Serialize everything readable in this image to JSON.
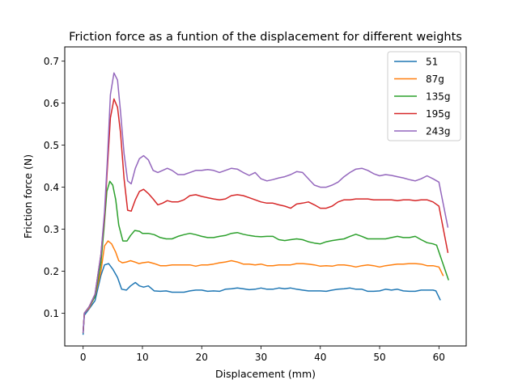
{
  "chart_data": {
    "type": "line",
    "title": "Friction force as a funtion of the displacement for different weights",
    "xlabel": "Displacement (mm)",
    "ylabel": "Friction force (N)",
    "xlim": [
      -3.1,
      64.6
    ],
    "ylim": [
      0.022,
      0.734
    ],
    "xticks": [
      0,
      10,
      20,
      30,
      40,
      50,
      60
    ],
    "yticks": [
      0.1,
      0.2,
      0.3,
      0.4,
      0.5,
      0.6,
      0.7
    ],
    "xtick_labels": [
      "0",
      "10",
      "20",
      "30",
      "40",
      "50",
      "60"
    ],
    "ytick_labels": [
      "0.1",
      "0.2",
      "0.3",
      "0.4",
      "0.5",
      "0.6",
      "0.7"
    ],
    "grid": false,
    "legend_position": "top-right",
    "series": [
      {
        "name": "51",
        "color": "#1f77b4",
        "x": [
          0,
          0.2,
          1,
          2,
          3,
          3.6,
          4.3,
          5,
          5.8,
          6.5,
          7.3,
          8,
          8.8,
          9.5,
          10.2,
          11,
          12,
          13,
          14,
          15,
          16,
          17,
          18,
          19,
          20,
          21,
          22,
          23,
          24,
          25,
          26,
          27,
          28,
          29,
          30,
          31,
          32,
          33,
          34,
          35,
          36,
          37,
          38,
          39,
          40,
          41,
          42,
          43,
          44,
          45,
          46,
          47,
          48,
          49,
          50,
          51,
          52,
          53,
          54,
          55,
          56,
          57,
          58,
          59,
          59.5,
          60.2
        ],
        "y": [
          0.05,
          0.095,
          0.11,
          0.13,
          0.19,
          0.215,
          0.218,
          0.205,
          0.185,
          0.157,
          0.155,
          0.165,
          0.173,
          0.165,
          0.162,
          0.165,
          0.153,
          0.152,
          0.153,
          0.15,
          0.15,
          0.15,
          0.153,
          0.155,
          0.155,
          0.152,
          0.153,
          0.152,
          0.157,
          0.158,
          0.16,
          0.158,
          0.156,
          0.157,
          0.16,
          0.157,
          0.157,
          0.16,
          0.158,
          0.16,
          0.157,
          0.155,
          0.153,
          0.153,
          0.153,
          0.152,
          0.155,
          0.157,
          0.158,
          0.16,
          0.157,
          0.157,
          0.152,
          0.152,
          0.153,
          0.157,
          0.155,
          0.157,
          0.153,
          0.152,
          0.152,
          0.155,
          0.155,
          0.155,
          0.153,
          0.132
        ]
      },
      {
        "name": "87g",
        "color": "#ff7f0e",
        "x": [
          0,
          0.2,
          1,
          2,
          3,
          3.6,
          4.2,
          4.8,
          5.5,
          6,
          6.6,
          7.3,
          8,
          8.7,
          9.4,
          10,
          11,
          12,
          13,
          14,
          15,
          16,
          17,
          18,
          19,
          20,
          21,
          22,
          23,
          24,
          25,
          26,
          27,
          28,
          29,
          30,
          31,
          32,
          33,
          34,
          35,
          36,
          37,
          38,
          39,
          40,
          41,
          42,
          43,
          44,
          45,
          46,
          47,
          48,
          49,
          50,
          51,
          52,
          53,
          54,
          55,
          56,
          57,
          58,
          59,
          60,
          60.7
        ],
        "y": [
          0.055,
          0.1,
          0.112,
          0.14,
          0.2,
          0.26,
          0.272,
          0.265,
          0.245,
          0.225,
          0.22,
          0.222,
          0.225,
          0.222,
          0.218,
          0.22,
          0.222,
          0.218,
          0.213,
          0.213,
          0.215,
          0.215,
          0.215,
          0.215,
          0.212,
          0.215,
          0.215,
          0.217,
          0.22,
          0.222,
          0.225,
          0.222,
          0.217,
          0.217,
          0.215,
          0.217,
          0.213,
          0.213,
          0.215,
          0.215,
          0.215,
          0.218,
          0.218,
          0.217,
          0.215,
          0.212,
          0.213,
          0.212,
          0.215,
          0.215,
          0.213,
          0.21,
          0.213,
          0.215,
          0.213,
          0.21,
          0.213,
          0.215,
          0.217,
          0.217,
          0.218,
          0.218,
          0.217,
          0.213,
          0.213,
          0.21,
          0.19
        ]
      },
      {
        "name": "135g",
        "color": "#2ca02c",
        "x": [
          0,
          0.2,
          1,
          2,
          3,
          3.5,
          4,
          4.5,
          5,
          5.5,
          6,
          6.7,
          7.4,
          8,
          8.7,
          9.5,
          10,
          11,
          12,
          13,
          14,
          15,
          16,
          17,
          18,
          19,
          20,
          21,
          22,
          23,
          24,
          25,
          26,
          27,
          28,
          29,
          30,
          31,
          32,
          33,
          34,
          35,
          36,
          37,
          38,
          39,
          40,
          41,
          42,
          43,
          44,
          45,
          46,
          47,
          48,
          49,
          50,
          51,
          52,
          53,
          54,
          55,
          56,
          57,
          58,
          59,
          59.6,
          61.6
        ],
        "y": [
          0.055,
          0.1,
          0.115,
          0.14,
          0.22,
          0.3,
          0.39,
          0.414,
          0.405,
          0.37,
          0.31,
          0.272,
          0.272,
          0.285,
          0.297,
          0.295,
          0.29,
          0.29,
          0.287,
          0.28,
          0.277,
          0.277,
          0.283,
          0.287,
          0.29,
          0.287,
          0.283,
          0.28,
          0.28,
          0.283,
          0.285,
          0.29,
          0.292,
          0.288,
          0.285,
          0.283,
          0.282,
          0.283,
          0.283,
          0.275,
          0.273,
          0.275,
          0.277,
          0.275,
          0.27,
          0.267,
          0.265,
          0.27,
          0.273,
          0.275,
          0.277,
          0.283,
          0.288,
          0.283,
          0.277,
          0.277,
          0.277,
          0.277,
          0.28,
          0.283,
          0.28,
          0.28,
          0.283,
          0.275,
          0.268,
          0.265,
          0.262,
          0.18
        ]
      },
      {
        "name": "195g",
        "color": "#d62728",
        "x": [
          0,
          0.2,
          1,
          2,
          3,
          3.6,
          4.1,
          4.6,
          5.2,
          5.8,
          6.3,
          6.9,
          7.5,
          8.1,
          8.8,
          9.5,
          10.2,
          11,
          11.8,
          12.6,
          13.4,
          14.2,
          15,
          16,
          17,
          18,
          19,
          20,
          21,
          22,
          23,
          24,
          25,
          26,
          27,
          28,
          29,
          30,
          31,
          32,
          33,
          34,
          35,
          36,
          37,
          38,
          39,
          40,
          41,
          42,
          43,
          44,
          45,
          46,
          47,
          48,
          49,
          50,
          51,
          52,
          53,
          54,
          55,
          56,
          57,
          58,
          59,
          60,
          61.5
        ],
        "y": [
          0.055,
          0.1,
          0.115,
          0.145,
          0.24,
          0.33,
          0.45,
          0.565,
          0.61,
          0.59,
          0.53,
          0.42,
          0.345,
          0.343,
          0.37,
          0.39,
          0.395,
          0.385,
          0.372,
          0.358,
          0.362,
          0.368,
          0.365,
          0.365,
          0.37,
          0.38,
          0.382,
          0.378,
          0.375,
          0.372,
          0.37,
          0.372,
          0.38,
          0.382,
          0.38,
          0.375,
          0.37,
          0.365,
          0.362,
          0.362,
          0.358,
          0.355,
          0.35,
          0.36,
          0.362,
          0.365,
          0.358,
          0.35,
          0.35,
          0.355,
          0.365,
          0.37,
          0.37,
          0.372,
          0.372,
          0.372,
          0.37,
          0.37,
          0.37,
          0.37,
          0.368,
          0.37,
          0.37,
          0.368,
          0.37,
          0.37,
          0.365,
          0.355,
          0.245
        ]
      },
      {
        "name": "243g",
        "color": "#9467bd",
        "x": [
          0,
          0.2,
          1,
          2,
          3,
          3.6,
          4.1,
          4.6,
          5.2,
          5.8,
          6.3,
          6.9,
          7.5,
          8.1,
          8.8,
          9.5,
          10.2,
          11,
          11.8,
          12.6,
          13.4,
          14.2,
          15,
          16,
          17,
          18,
          19,
          20,
          21,
          22,
          23,
          24,
          25,
          26,
          27,
          28,
          29,
          30,
          31,
          32,
          33,
          34,
          35,
          36,
          37,
          38,
          39,
          40,
          41,
          42,
          43,
          44,
          45,
          46,
          47,
          48,
          49,
          50,
          51,
          52,
          53,
          54,
          55,
          56,
          57,
          58,
          59,
          60,
          61.5
        ],
        "y": [
          0.055,
          0.1,
          0.115,
          0.145,
          0.24,
          0.34,
          0.47,
          0.62,
          0.672,
          0.655,
          0.58,
          0.48,
          0.415,
          0.408,
          0.445,
          0.468,
          0.475,
          0.465,
          0.44,
          0.435,
          0.44,
          0.445,
          0.44,
          0.43,
          0.43,
          0.435,
          0.44,
          0.44,
          0.442,
          0.44,
          0.435,
          0.44,
          0.445,
          0.443,
          0.435,
          0.428,
          0.435,
          0.42,
          0.415,
          0.418,
          0.422,
          0.425,
          0.43,
          0.437,
          0.435,
          0.42,
          0.405,
          0.4,
          0.4,
          0.405,
          0.412,
          0.425,
          0.435,
          0.443,
          0.445,
          0.44,
          0.432,
          0.427,
          0.43,
          0.428,
          0.425,
          0.422,
          0.418,
          0.415,
          0.42,
          0.427,
          0.42,
          0.412,
          0.305
        ]
      }
    ]
  }
}
